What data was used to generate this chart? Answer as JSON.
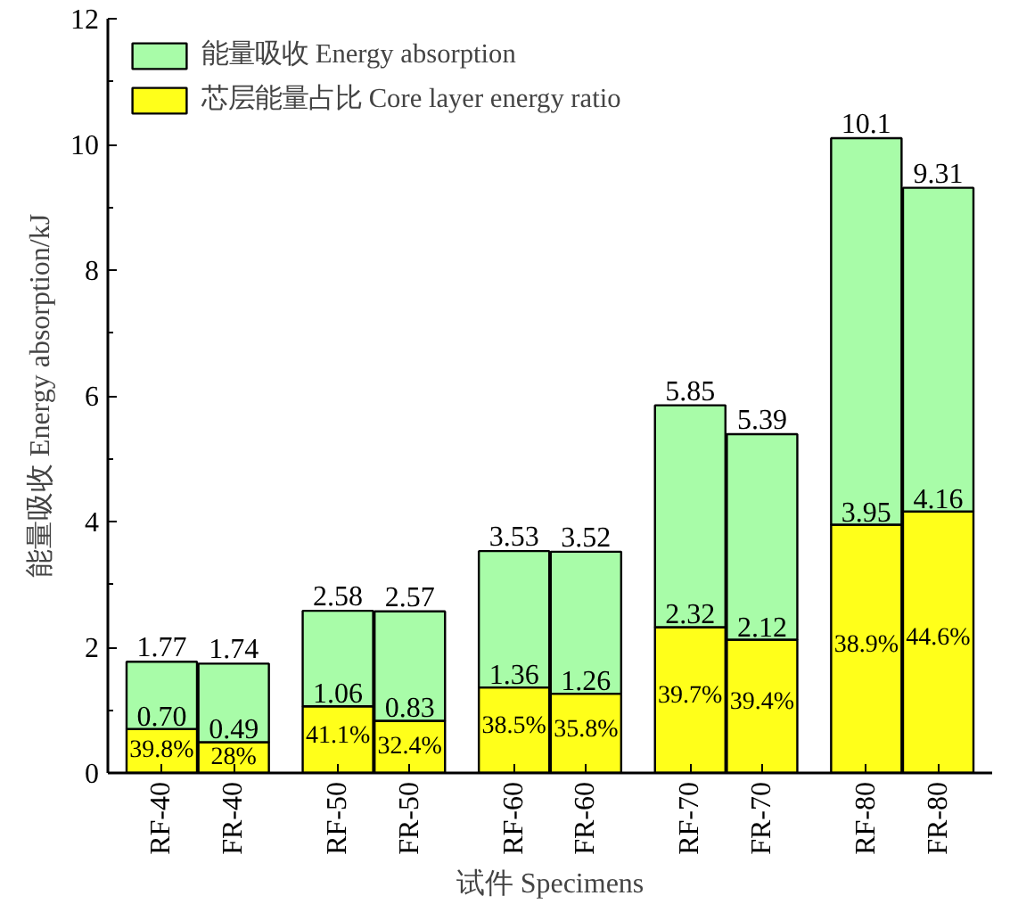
{
  "chart_data": {
    "type": "bar",
    "xlabel": "试件 Specimens",
    "ylabel": "能量吸收 Energy absorption/kJ",
    "categories": [
      "RF-40",
      "FR-40",
      "RF-50",
      "FR-50",
      "RF-60",
      "FR-60",
      "RF-70",
      "FR-70",
      "RF-80",
      "FR-80"
    ],
    "stacked": true,
    "series": [
      {
        "name": "芯层能量占比 Core layer energy ratio",
        "color": "#ffff1a",
        "values": [
          0.7,
          0.49,
          1.06,
          0.83,
          1.36,
          1.26,
          2.32,
          2.12,
          3.95,
          4.16
        ],
        "value_labels": [
          "0.70",
          "0.49",
          "1.06",
          "0.83",
          "1.36",
          "1.26",
          "2.32",
          "2.12",
          "3.95",
          "4.16"
        ]
      },
      {
        "name": "能量吸收 Energy absorption",
        "color": "#a8fca8",
        "values": [
          1.07,
          1.25,
          1.52,
          1.74,
          2.17,
          2.26,
          3.53,
          3.27,
          6.15,
          5.15
        ]
      }
    ],
    "totals": [
      "1.77",
      "1.74",
      "2.58",
      "2.57",
      "3.53",
      "3.52",
      "5.85",
      "5.39",
      "10.1",
      "9.31"
    ],
    "annotations": [
      "39.8%",
      "28%",
      "41.1%",
      "32.4%",
      "38.5%",
      "35.8%",
      "39.7%",
      "39.4%",
      "38.9%",
      "44.6%"
    ],
    "ylim": [
      0,
      12
    ],
    "yticks": [
      0,
      2,
      4,
      6,
      8,
      10,
      12
    ],
    "legend": "top left",
    "grid": false
  }
}
